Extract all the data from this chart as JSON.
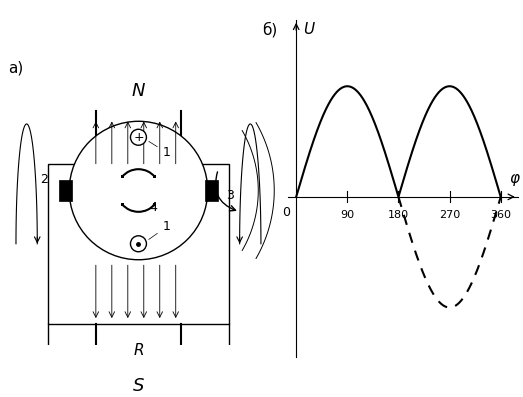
{
  "fig_width": 5.23,
  "fig_height": 3.97,
  "dpi": 100,
  "bg_color": "#ffffff",
  "label_a": "а)",
  "label_b": "б)",
  "graph_xlabel": "φ",
  "graph_ylabel": "U",
  "graph_xticks": [
    90,
    180,
    270,
    360
  ],
  "graph_xtick_labels": [
    "90",
    "180",
    "270",
    "360"
  ],
  "graph_zero_label": "0",
  "solid_color": "#000000",
  "dashed_color": "#000000",
  "text_color": "#000000",
  "N_label": "N",
  "S_label": "S",
  "R_label": "R"
}
